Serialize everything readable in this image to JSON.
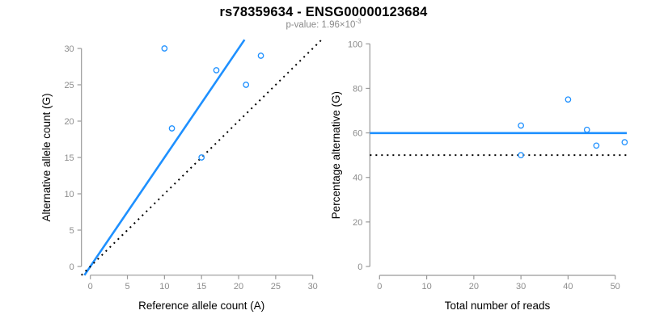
{
  "header": {
    "title": "rs78359634 - ENSG00000123684",
    "subtitle_base": "p-value: 1.96×10",
    "subtitle_exponent": "-3"
  },
  "colors": {
    "accent_blue": "#1E90FF",
    "axis_line_gray": "#999999",
    "tick_label_gray": "#8c8c8c",
    "axis_title_black": "#000000",
    "subtitle_gray": "#8a8a8a",
    "dotted_black": "#000000"
  },
  "chart_data": [
    {
      "type": "scatter",
      "name": "allele-counts-scatter",
      "xlabel": "Reference allele count (A)",
      "ylabel": "Alternative allele count (G)",
      "xlim": [
        0,
        30
      ],
      "ylim": [
        0,
        30
      ],
      "xticks": [
        0,
        5,
        10,
        15,
        20,
        25,
        30
      ],
      "yticks": [
        0,
        5,
        10,
        15,
        20,
        25,
        30
      ],
      "grid": false,
      "points": [
        [
          10,
          30
        ],
        [
          11,
          19
        ],
        [
          15,
          15
        ],
        [
          17,
          27
        ],
        [
          21,
          25
        ],
        [
          23,
          29
        ]
      ],
      "lines": [
        {
          "name": "fit-line",
          "style": "solid",
          "color": "#1E90FF",
          "slope": 1.5,
          "intercept": 0
        },
        {
          "name": "identity-line",
          "style": "dotted",
          "color": "#000000",
          "slope": 1,
          "intercept": 0
        }
      ]
    },
    {
      "type": "scatter",
      "name": "percentage-alternative-scatter",
      "xlabel": "Total number of reads",
      "ylabel": "Percentage alternative (G)",
      "xlim": [
        0,
        52
      ],
      "ylim": [
        0,
        100
      ],
      "xticks": [
        0,
        10,
        20,
        30,
        40,
        50
      ],
      "yticks": [
        0,
        20,
        40,
        60,
        80,
        100
      ],
      "grid": false,
      "points": [
        [
          30,
          63.3
        ],
        [
          30,
          50
        ],
        [
          40,
          75
        ],
        [
          44,
          61.4
        ],
        [
          46,
          54.3
        ],
        [
          52,
          55.8
        ]
      ],
      "lines": [
        {
          "name": "mean-percentage-line",
          "style": "solid",
          "color": "#1E90FF",
          "y": 59.9
        },
        {
          "name": "null-50pct-line",
          "style": "dotted",
          "color": "#000000",
          "y": 50
        }
      ]
    }
  ]
}
